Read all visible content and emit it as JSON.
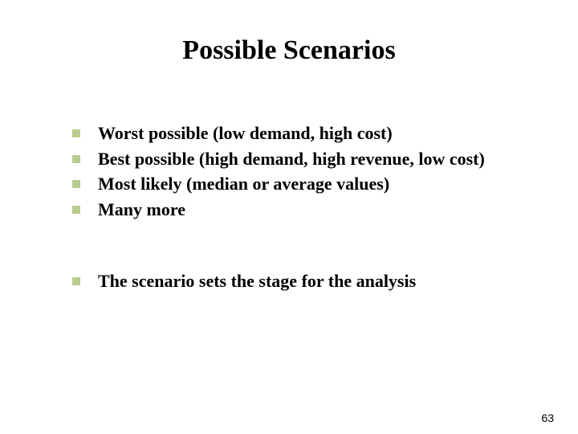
{
  "title": "Possible Scenarios",
  "bullet_color": "#b9cc8e",
  "text_color": "#000000",
  "background_color": "#ffffff",
  "title_fontsize": 34,
  "body_fontsize": 22,
  "group1": {
    "items": [
      "Worst possible (low demand, high cost)",
      "Best possible (high demand, high revenue, low cost)",
      "Most likely (median or average values)",
      "Many more"
    ]
  },
  "group2": {
    "items": [
      "The scenario sets the stage for the analysis"
    ]
  },
  "page_number": "63"
}
